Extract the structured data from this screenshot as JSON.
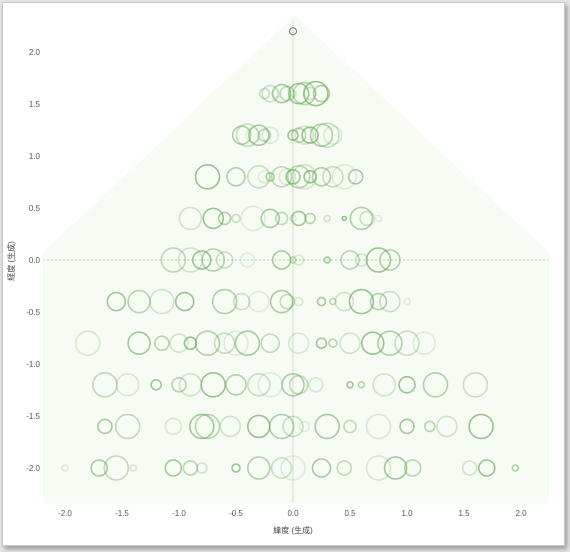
{
  "chart_data": {
    "type": "scatter",
    "xlabel": "緯度 (生成)",
    "ylabel": "経度 (生成)",
    "xlim": [
      -2.0,
      2.0
    ],
    "ylim": [
      -2.0,
      2.0
    ],
    "x_ticks": [
      "-2.0",
      "-1.5",
      "-1.0",
      "-0.5",
      "0.0",
      "0.5",
      "1.0",
      "1.5",
      "2.0"
    ],
    "y_ticks": [
      "2.0",
      "1.5",
      "1.0",
      "0.5",
      "0.0",
      "-0.5",
      "-1.0",
      "-1.5",
      "-2.0"
    ],
    "grid": false,
    "reference_lines": {
      "x": 0,
      "y": 0
    },
    "marker": "hollow circle",
    "color": "#6aab5c",
    "highlight_color": "#555555",
    "background_color": "#f6fbf4",
    "rows": [
      {
        "y": 2.2,
        "points": [
          {
            "x": 0.0,
            "size": 3
          }
        ]
      },
      {
        "y": 1.6,
        "points": [
          {
            "x": -0.2,
            "size": 8
          },
          {
            "x": -0.15,
            "size": 4
          },
          {
            "x": -0.1,
            "size": 9
          },
          {
            "x": -0.05,
            "size": 7
          },
          {
            "x": 0.0,
            "size": 3
          },
          {
            "x": 0.05,
            "size": 10
          },
          {
            "x": 0.1,
            "size": 11
          },
          {
            "x": 0.15,
            "size": 6
          },
          {
            "x": 0.2,
            "size": 12
          },
          {
            "x": 0.25,
            "size": 8
          },
          {
            "x": -0.25,
            "size": 5
          }
        ]
      },
      {
        "y": 1.2,
        "points": [
          {
            "x": -0.45,
            "size": 9
          },
          {
            "x": -0.4,
            "size": 11
          },
          {
            "x": -0.35,
            "size": 7
          },
          {
            "x": -0.3,
            "size": 10
          },
          {
            "x": -0.25,
            "size": 6
          },
          {
            "x": -0.2,
            "size": 8
          },
          {
            "x": 0.0,
            "size": 5
          },
          {
            "x": 0.05,
            "size": 7
          },
          {
            "x": 0.1,
            "size": 9
          },
          {
            "x": 0.15,
            "size": 8
          },
          {
            "x": 0.25,
            "size": 11
          },
          {
            "x": 0.3,
            "size": 12
          },
          {
            "x": 0.35,
            "size": 9
          }
        ]
      },
      {
        "y": 0.8,
        "points": [
          {
            "x": -0.75,
            "size": 12
          },
          {
            "x": -0.5,
            "size": 9
          },
          {
            "x": -0.3,
            "size": 11
          },
          {
            "x": -0.25,
            "size": 6
          },
          {
            "x": -0.2,
            "size": 4
          },
          {
            "x": -0.1,
            "size": 10
          },
          {
            "x": -0.05,
            "size": 8
          },
          {
            "x": 0.0,
            "size": 7
          },
          {
            "x": 0.05,
            "size": 11
          },
          {
            "x": 0.1,
            "size": 12
          },
          {
            "x": 0.15,
            "size": 6
          },
          {
            "x": 0.25,
            "size": 9
          },
          {
            "x": 0.35,
            "size": 10
          },
          {
            "x": 0.45,
            "size": 12
          },
          {
            "x": 0.55,
            "size": 7
          }
        ]
      },
      {
        "y": 0.4,
        "points": [
          {
            "x": -0.9,
            "size": 11
          },
          {
            "x": -0.7,
            "size": 10
          },
          {
            "x": -0.6,
            "size": 6
          },
          {
            "x": -0.5,
            "size": 4
          },
          {
            "x": -0.35,
            "size": 12
          },
          {
            "x": -0.2,
            "size": 9
          },
          {
            "x": -0.1,
            "size": 6
          },
          {
            "x": 0.0,
            "size": 3
          },
          {
            "x": 0.05,
            "size": 7
          },
          {
            "x": 0.15,
            "size": 5
          },
          {
            "x": 0.3,
            "size": 3
          },
          {
            "x": 0.45,
            "size": 2
          },
          {
            "x": 0.6,
            "size": 11
          },
          {
            "x": 0.65,
            "size": 7
          },
          {
            "x": 0.75,
            "size": 3
          }
        ]
      },
      {
        "y": 0.0,
        "points": [
          {
            "x": -1.05,
            "size": 12
          },
          {
            "x": -0.9,
            "size": 12
          },
          {
            "x": -0.8,
            "size": 9
          },
          {
            "x": -0.7,
            "size": 11
          },
          {
            "x": -0.6,
            "size": 8
          },
          {
            "x": -0.4,
            "size": 7
          },
          {
            "x": -0.1,
            "size": 9
          },
          {
            "x": 0.0,
            "size": 3
          },
          {
            "x": 0.05,
            "size": 5
          },
          {
            "x": 0.3,
            "size": 3
          },
          {
            "x": 0.5,
            "size": 9
          },
          {
            "x": 0.6,
            "size": 6
          },
          {
            "x": 0.75,
            "size": 12
          },
          {
            "x": 0.85,
            "size": 10
          }
        ]
      },
      {
        "y": -0.4,
        "points": [
          {
            "x": -1.55,
            "size": 9
          },
          {
            "x": -1.35,
            "size": 11
          },
          {
            "x": -1.15,
            "size": 12
          },
          {
            "x": -0.95,
            "size": 9
          },
          {
            "x": -0.6,
            "size": 12
          },
          {
            "x": -0.45,
            "size": 8
          },
          {
            "x": -0.3,
            "size": 10
          },
          {
            "x": -0.1,
            "size": 11
          },
          {
            "x": -0.05,
            "size": 7
          },
          {
            "x": 0.05,
            "size": 4
          },
          {
            "x": 0.25,
            "size": 4
          },
          {
            "x": 0.35,
            "size": 3
          },
          {
            "x": 0.45,
            "size": 9
          },
          {
            "x": 0.6,
            "size": 12
          },
          {
            "x": 0.75,
            "size": 8
          },
          {
            "x": 0.85,
            "size": 10
          },
          {
            "x": 1.0,
            "size": 3
          }
        ]
      },
      {
        "y": -0.8,
        "points": [
          {
            "x": -1.8,
            "size": 12
          },
          {
            "x": -1.35,
            "size": 11
          },
          {
            "x": -1.15,
            "size": 7
          },
          {
            "x": -1.0,
            "size": 9
          },
          {
            "x": -0.9,
            "size": 6
          },
          {
            "x": -0.75,
            "size": 12
          },
          {
            "x": -0.6,
            "size": 10
          },
          {
            "x": -0.5,
            "size": 12
          },
          {
            "x": -0.4,
            "size": 12
          },
          {
            "x": -0.2,
            "size": 9
          },
          {
            "x": 0.05,
            "size": 10
          },
          {
            "x": 0.25,
            "size": 5
          },
          {
            "x": 0.35,
            "size": 4
          },
          {
            "x": 0.5,
            "size": 10
          },
          {
            "x": 0.7,
            "size": 11
          },
          {
            "x": 0.85,
            "size": 12
          },
          {
            "x": 1.0,
            "size": 12
          },
          {
            "x": 1.15,
            "size": 11
          }
        ]
      },
      {
        "y": -1.2,
        "points": [
          {
            "x": -1.65,
            "size": 12
          },
          {
            "x": -1.45,
            "size": 11
          },
          {
            "x": -1.2,
            "size": 5
          },
          {
            "x": -1.0,
            "size": 7
          },
          {
            "x": -0.9,
            "size": 11
          },
          {
            "x": -0.7,
            "size": 12
          },
          {
            "x": -0.5,
            "size": 10
          },
          {
            "x": -0.3,
            "size": 11
          },
          {
            "x": -0.2,
            "size": 12
          },
          {
            "x": 0.0,
            "size": 11
          },
          {
            "x": 0.05,
            "size": 9
          },
          {
            "x": 0.2,
            "size": 7
          },
          {
            "x": 0.5,
            "size": 3
          },
          {
            "x": 0.6,
            "size": 3
          },
          {
            "x": 0.8,
            "size": 11
          },
          {
            "x": 1.0,
            "size": 8
          },
          {
            "x": 1.25,
            "size": 12
          },
          {
            "x": 1.6,
            "size": 12
          }
        ]
      },
      {
        "y": -1.6,
        "points": [
          {
            "x": -1.65,
            "size": 7
          },
          {
            "x": -1.45,
            "size": 12
          },
          {
            "x": -1.05,
            "size": 8
          },
          {
            "x": -0.8,
            "size": 12
          },
          {
            "x": -0.75,
            "size": 12
          },
          {
            "x": -0.55,
            "size": 10
          },
          {
            "x": -0.3,
            "size": 11
          },
          {
            "x": -0.1,
            "size": 12
          },
          {
            "x": 0.0,
            "size": 10
          },
          {
            "x": 0.1,
            "size": 5
          },
          {
            "x": 0.3,
            "size": 12
          },
          {
            "x": 0.5,
            "size": 6
          },
          {
            "x": 0.75,
            "size": 12
          },
          {
            "x": 1.0,
            "size": 7
          },
          {
            "x": 1.2,
            "size": 5
          },
          {
            "x": 1.35,
            "size": 10
          },
          {
            "x": 1.65,
            "size": 12
          }
        ]
      },
      {
        "y": -2.0,
        "points": [
          {
            "x": -2.0,
            "size": 3
          },
          {
            "x": -1.7,
            "size": 8
          },
          {
            "x": -1.55,
            "size": 12
          },
          {
            "x": -1.4,
            "size": 3
          },
          {
            "x": -1.05,
            "size": 8
          },
          {
            "x": -0.9,
            "size": 7
          },
          {
            "x": -0.8,
            "size": 5
          },
          {
            "x": -0.5,
            "size": 4
          },
          {
            "x": -0.3,
            "size": 11
          },
          {
            "x": -0.1,
            "size": 10
          },
          {
            "x": 0.0,
            "size": 12
          },
          {
            "x": 0.25,
            "size": 9
          },
          {
            "x": 0.45,
            "size": 7
          },
          {
            "x": 0.75,
            "size": 12
          },
          {
            "x": 0.9,
            "size": 11
          },
          {
            "x": 1.05,
            "size": 8
          },
          {
            "x": 1.55,
            "size": 7
          },
          {
            "x": 1.7,
            "size": 8
          },
          {
            "x": 1.95,
            "size": 3
          }
        ]
      }
    ]
  }
}
